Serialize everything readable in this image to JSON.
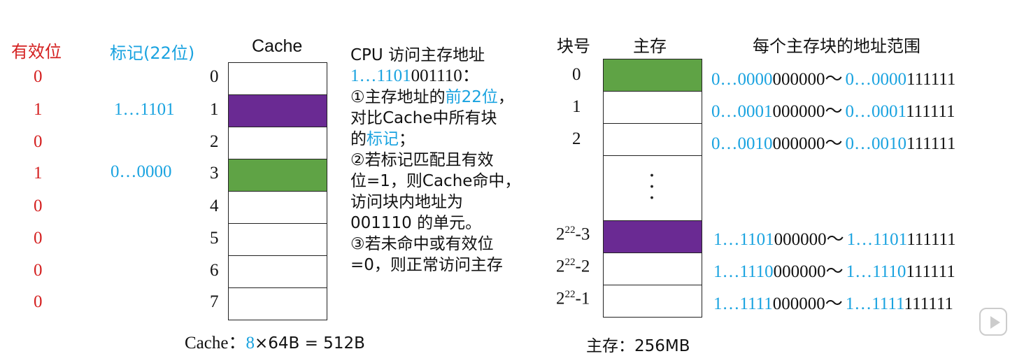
{
  "left_headers": {
    "valid": "有效位",
    "tag": "标记(22位)",
    "cache": "Cache"
  },
  "cache_rows": [
    {
      "index": "0",
      "valid": "0",
      "tag": "",
      "color": "#ffffff"
    },
    {
      "index": "1",
      "valid": "1",
      "tag": "1…1101",
      "color": "#6a2a93"
    },
    {
      "index": "2",
      "valid": "0",
      "tag": "",
      "color": "#ffffff"
    },
    {
      "index": "3",
      "valid": "1",
      "tag": "0…0000",
      "color": "#5fa345"
    },
    {
      "index": "4",
      "valid": "0",
      "tag": "",
      "color": "#ffffff"
    },
    {
      "index": "5",
      "valid": "0",
      "tag": "",
      "color": "#ffffff"
    },
    {
      "index": "6",
      "valid": "0",
      "tag": "",
      "color": "#ffffff"
    },
    {
      "index": "7",
      "valid": "0",
      "tag": "",
      "color": "#ffffff"
    }
  ],
  "cache_footer": {
    "prefix": "Cache：",
    "count": "8",
    "rest": "×64B = 512B"
  },
  "description": {
    "line1": "CPU 访问主存地址",
    "addr_blue": "1…1101",
    "addr_black": "001110：",
    "l3_a": "①主存地址的",
    "l3_b": "前22位",
    "l3_c": "，",
    "l4": "对比Cache中所有块",
    "l5_a": "的",
    "l5_b": "标记",
    "l5_c": "；",
    "l6": "②若标记匹配且有效",
    "l7": "位=1，则Cache命中，",
    "l8": "访问块内地址为",
    "l9": "001110 的单元。",
    "l10": "③若未命中或有效位",
    "l11": "=0，则正常访问主存"
  },
  "right_headers": {
    "block_no": "块号",
    "memory": "主存",
    "range": "每个主存块的地址范围"
  },
  "memory_rows": [
    {
      "label": "0",
      "color": "#5fa345",
      "from_blue": "0…0000",
      "from_black": "000000",
      "to_blue": "0…0000",
      "to_black": "111111"
    },
    {
      "label": "1",
      "color": "#ffffff",
      "from_blue": "0…0001",
      "from_black": "000000",
      "to_blue": "0…0001",
      "to_black": "111111"
    },
    {
      "label": "2",
      "color": "#ffffff",
      "from_blue": "0…0010",
      "from_black": "000000",
      "to_blue": "0…0010",
      "to_black": "111111"
    },
    {
      "label_base": "2",
      "label_exp": "22",
      "label_suffix": "-3",
      "color": "#6a2a93",
      "from_blue": "1…1101",
      "from_black": "000000",
      "to_blue": "1…1101",
      "to_black": "111111"
    },
    {
      "label_base": "2",
      "label_exp": "22",
      "label_suffix": "-2",
      "color": "#ffffff",
      "from_blue": "1…1110",
      "from_black": "000000",
      "to_blue": "1…1110",
      "to_black": "111111"
    },
    {
      "label_base": "2",
      "label_exp": "22",
      "label_suffix": "-1",
      "color": "#ffffff",
      "from_blue": "1…1111",
      "from_black": "000000",
      "to_blue": "1…1111",
      "to_black": "111111"
    }
  ],
  "range_separator": "～",
  "memory_footer": "主存：256MB",
  "vertical_dots": "·\n·\n·",
  "icons": {
    "play": "play-icon"
  }
}
